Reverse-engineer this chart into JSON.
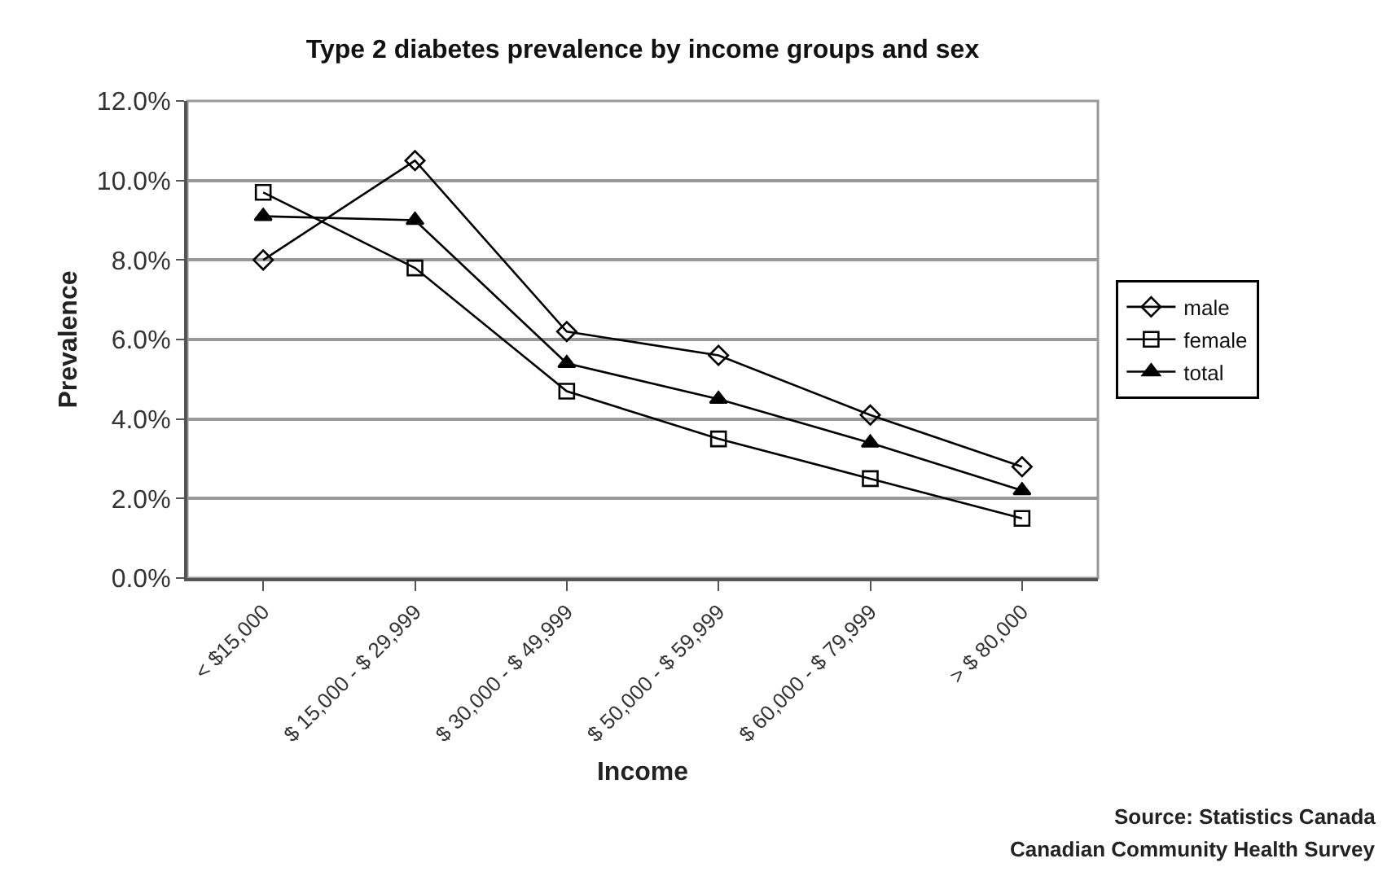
{
  "chart_data": {
    "type": "line",
    "title": "Type 2 diabetes prevalence by income groups and sex",
    "xlabel": "Income",
    "ylabel": "Prevalence",
    "categories": [
      "< $15,000",
      "$ 15,000 - $ 29,999",
      "$ 30,000 - $ 49,999",
      "$ 50,000 - $ 59,999",
      "$ 60,000 - $ 79,999",
      "> $ 80,000"
    ],
    "series": [
      {
        "name": "male",
        "color": "#000000",
        "marker": "diamond",
        "values": [
          8.0,
          10.5,
          6.2,
          5.6,
          4.1,
          2.8
        ]
      },
      {
        "name": "female",
        "color": "#000000",
        "marker": "square",
        "values": [
          9.7,
          7.8,
          4.7,
          3.5,
          2.5,
          1.5
        ]
      },
      {
        "name": "total",
        "color": "#000000",
        "marker": "triangle",
        "values": [
          9.1,
          9.0,
          5.4,
          4.5,
          3.4,
          2.2
        ]
      }
    ],
    "ylim": [
      0,
      12
    ],
    "yticks": [
      {
        "value": 0,
        "label": "0.0%"
      },
      {
        "value": 2,
        "label": "2.0%"
      },
      {
        "value": 4,
        "label": "4.0%"
      },
      {
        "value": 6,
        "label": "6.0%"
      },
      {
        "value": 8,
        "label": "8.0%"
      },
      {
        "value": 10,
        "label": "10.0%"
      },
      {
        "value": 12,
        "label": "12.0%"
      }
    ],
    "grid": "y",
    "legend": "right",
    "line_style": "solid",
    "annotations": [
      "Source: Statistics Canada",
      "Canadian Community Health Survey"
    ]
  }
}
